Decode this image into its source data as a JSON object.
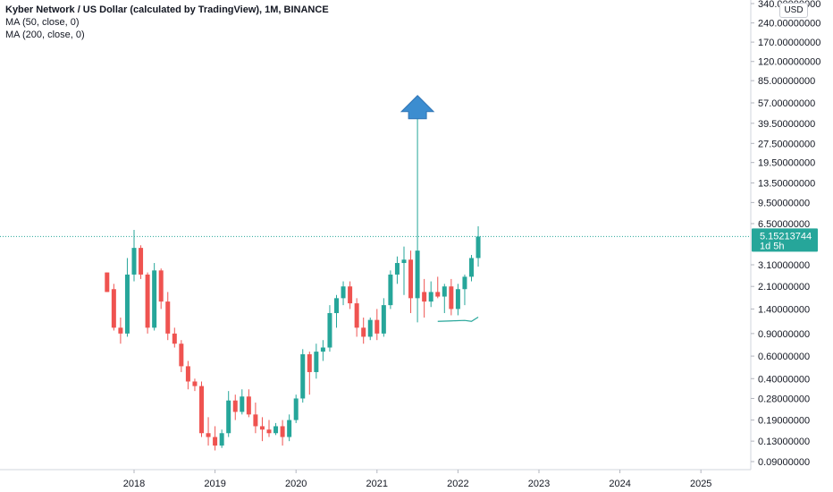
{
  "header": {
    "title": "Kyber Network / US Dollar (calculated by TradingView), 1M, BINANCE",
    "indicators": [
      "MA (50, close, 0)",
      "MA (200, close, 0)"
    ]
  },
  "currency_button": "USD",
  "colors": {
    "up": "#26a69a",
    "down": "#ef5350",
    "arrow": "#3c8dd0",
    "price_line": "#26a69a",
    "ma": "#26a69a"
  },
  "chart_data": {
    "type": "candlestick",
    "symbol": "Kyber Network / US Dollar (calculated by TradingView), 1M, BINANCE",
    "y_scale": "log",
    "y_ticks": [
      "340.00000000",
      "240.00000000",
      "170.00000000",
      "120.00000000",
      "85.00000000",
      "57.00000000",
      "39.50000000",
      "27.50000000",
      "19.50000000",
      "13.50000000",
      "9.50000000",
      "6.50000000",
      "3.10000000",
      "2.10000000",
      "1.40000000",
      "0.90000000",
      "0.60000000",
      "0.40000000",
      "0.28000000",
      "0.19000000",
      "0.13000000",
      "0.09000000"
    ],
    "x_ticks": [
      "2018",
      "2019",
      "2020",
      "2021",
      "2022",
      "2023",
      "2024",
      "2025"
    ],
    "last_price": "5.15213744",
    "countdown": "1d 5h",
    "candles": [
      {
        "date": "2017-09",
        "o": 2.7,
        "h": 2.7,
        "l": 1.9,
        "c": 1.9
      },
      {
        "date": "2017-10",
        "o": 2.0,
        "h": 2.2,
        "l": 0.95,
        "c": 1.0
      },
      {
        "date": "2017-11",
        "o": 1.0,
        "h": 1.2,
        "l": 0.75,
        "c": 0.9
      },
      {
        "date": "2017-12",
        "o": 0.9,
        "h": 3.5,
        "l": 0.85,
        "c": 2.6
      },
      {
        "date": "2018-01",
        "o": 2.6,
        "h": 5.8,
        "l": 2.3,
        "c": 4.2
      },
      {
        "date": "2018-02",
        "o": 4.2,
        "h": 4.4,
        "l": 2.4,
        "c": 2.6
      },
      {
        "date": "2018-03",
        "o": 2.6,
        "h": 2.7,
        "l": 0.9,
        "c": 1.0
      },
      {
        "date": "2018-04",
        "o": 1.0,
        "h": 3.2,
        "l": 0.95,
        "c": 2.8
      },
      {
        "date": "2018-05",
        "o": 2.8,
        "h": 2.9,
        "l": 1.4,
        "c": 1.6
      },
      {
        "date": "2018-06",
        "o": 1.6,
        "h": 1.9,
        "l": 0.8,
        "c": 0.9
      },
      {
        "date": "2018-07",
        "o": 0.9,
        "h": 1.0,
        "l": 0.7,
        "c": 0.75
      },
      {
        "date": "2018-08",
        "o": 0.75,
        "h": 0.8,
        "l": 0.45,
        "c": 0.5
      },
      {
        "date": "2018-09",
        "o": 0.5,
        "h": 0.55,
        "l": 0.33,
        "c": 0.38
      },
      {
        "date": "2018-10",
        "o": 0.38,
        "h": 0.4,
        "l": 0.32,
        "c": 0.35
      },
      {
        "date": "2018-11",
        "o": 0.35,
        "h": 0.38,
        "l": 0.14,
        "c": 0.15
      },
      {
        "date": "2018-12",
        "o": 0.15,
        "h": 0.2,
        "l": 0.12,
        "c": 0.14
      },
      {
        "date": "2019-01",
        "o": 0.14,
        "h": 0.17,
        "l": 0.11,
        "c": 0.12
      },
      {
        "date": "2019-02",
        "o": 0.12,
        "h": 0.16,
        "l": 0.115,
        "c": 0.15
      },
      {
        "date": "2019-03",
        "o": 0.15,
        "h": 0.32,
        "l": 0.14,
        "c": 0.27
      },
      {
        "date": "2019-04",
        "o": 0.27,
        "h": 0.3,
        "l": 0.19,
        "c": 0.22
      },
      {
        "date": "2019-05",
        "o": 0.22,
        "h": 0.33,
        "l": 0.21,
        "c": 0.29
      },
      {
        "date": "2019-06",
        "o": 0.29,
        "h": 0.33,
        "l": 0.2,
        "c": 0.21
      },
      {
        "date": "2019-07",
        "o": 0.21,
        "h": 0.26,
        "l": 0.15,
        "c": 0.17
      },
      {
        "date": "2019-08",
        "o": 0.17,
        "h": 0.2,
        "l": 0.13,
        "c": 0.16
      },
      {
        "date": "2019-09",
        "o": 0.16,
        "h": 0.19,
        "l": 0.14,
        "c": 0.15
      },
      {
        "date": "2019-10",
        "o": 0.15,
        "h": 0.18,
        "l": 0.145,
        "c": 0.17
      },
      {
        "date": "2019-11",
        "o": 0.17,
        "h": 0.19,
        "l": 0.12,
        "c": 0.14
      },
      {
        "date": "2019-12",
        "o": 0.14,
        "h": 0.21,
        "l": 0.13,
        "c": 0.19
      },
      {
        "date": "2020-01",
        "o": 0.19,
        "h": 0.3,
        "l": 0.18,
        "c": 0.28
      },
      {
        "date": "2020-02",
        "o": 0.28,
        "h": 0.68,
        "l": 0.26,
        "c": 0.62
      },
      {
        "date": "2020-03",
        "o": 0.62,
        "h": 0.65,
        "l": 0.3,
        "c": 0.45
      },
      {
        "date": "2020-04",
        "o": 0.45,
        "h": 0.75,
        "l": 0.4,
        "c": 0.65
      },
      {
        "date": "2020-05",
        "o": 0.65,
        "h": 0.8,
        "l": 0.55,
        "c": 0.7
      },
      {
        "date": "2020-06",
        "o": 0.7,
        "h": 1.5,
        "l": 0.65,
        "c": 1.3
      },
      {
        "date": "2020-07",
        "o": 1.3,
        "h": 1.8,
        "l": 1.0,
        "c": 1.7
      },
      {
        "date": "2020-08",
        "o": 1.7,
        "h": 2.3,
        "l": 1.5,
        "c": 2.1
      },
      {
        "date": "2020-09",
        "o": 2.1,
        "h": 2.3,
        "l": 1.4,
        "c": 1.55
      },
      {
        "date": "2020-10",
        "o": 1.55,
        "h": 1.7,
        "l": 0.85,
        "c": 1.0
      },
      {
        "date": "2020-11",
        "o": 1.0,
        "h": 1.2,
        "l": 0.75,
        "c": 0.85
      },
      {
        "date": "2020-12",
        "o": 0.85,
        "h": 1.2,
        "l": 0.8,
        "c": 1.15
      },
      {
        "date": "2021-01",
        "o": 1.15,
        "h": 1.4,
        "l": 0.8,
        "c": 0.9
      },
      {
        "date": "2021-02",
        "o": 0.9,
        "h": 1.7,
        "l": 0.85,
        "c": 1.5
      },
      {
        "date": "2021-03",
        "o": 1.5,
        "h": 2.8,
        "l": 1.4,
        "c": 2.6
      },
      {
        "date": "2021-04",
        "o": 2.6,
        "h": 3.6,
        "l": 2.2,
        "c": 3.2
      },
      {
        "date": "2021-05",
        "o": 3.2,
        "h": 4.3,
        "l": 1.8,
        "c": 3.4
      },
      {
        "date": "2021-06",
        "o": 3.4,
        "h": 4.0,
        "l": 1.3,
        "c": 1.7
      },
      {
        "date": "2021-07",
        "o": 1.7,
        "h": 63.0,
        "l": 1.1,
        "c": 4.0
      },
      {
        "date": "2021-08",
        "o": 1.9,
        "h": 2.4,
        "l": 1.2,
        "c": 1.6
      },
      {
        "date": "2021-09",
        "o": 1.6,
        "h": 2.3,
        "l": 1.45,
        "c": 1.9
      },
      {
        "date": "2021-10",
        "o": 1.9,
        "h": 2.5,
        "l": 1.7,
        "c": 1.75
      },
      {
        "date": "2021-11",
        "o": 1.75,
        "h": 2.2,
        "l": 1.3,
        "c": 2.1
      },
      {
        "date": "2021-12",
        "o": 2.1,
        "h": 2.4,
        "l": 1.25,
        "c": 1.4
      },
      {
        "date": "2022-01",
        "o": 1.4,
        "h": 2.2,
        "l": 1.25,
        "c": 2.0
      },
      {
        "date": "2022-02",
        "o": 2.0,
        "h": 2.6,
        "l": 1.5,
        "c": 2.5
      },
      {
        "date": "2022-03",
        "o": 2.5,
        "h": 3.7,
        "l": 2.3,
        "c": 3.5
      },
      {
        "date": "2022-04",
        "o": 3.5,
        "h": 6.2,
        "l": 3.0,
        "c": 5.15
      }
    ],
    "ma_50": [
      {
        "date": "2021-10",
        "v": 1.12
      },
      {
        "date": "2021-12",
        "v": 1.13
      },
      {
        "date": "2022-02",
        "v": 1.14
      },
      {
        "date": "2022-03",
        "v": 1.12
      },
      {
        "date": "2022-04",
        "v": 1.21
      }
    ]
  }
}
